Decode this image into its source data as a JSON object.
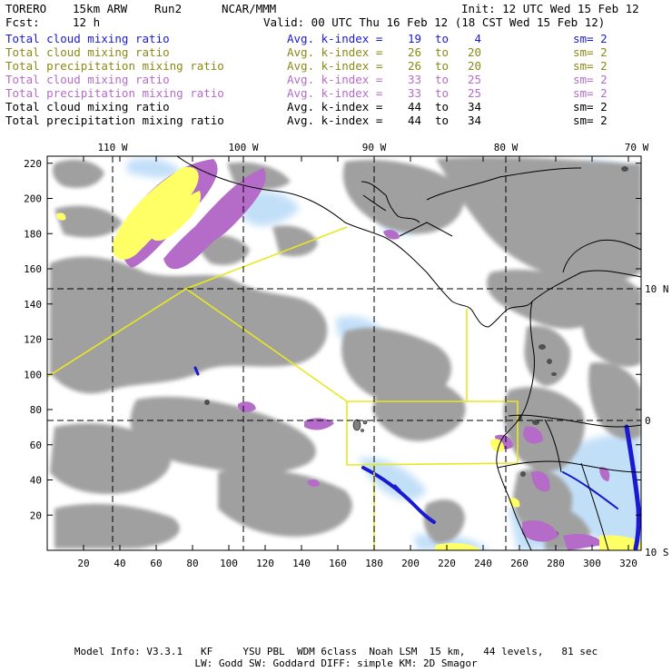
{
  "header": {
    "model": "TORERO",
    "resolution": "15km ARW",
    "run": "Run2",
    "org": "NCAR/MMM",
    "init": "Init: 12 UTC Wed 15 Feb 12",
    "fcst_label": "Fcst:",
    "fcst_value": "12 h",
    "valid": "Valid: 00 UTC Thu 16 Feb 12 (18 CST Wed 15 Feb 12)"
  },
  "legend": [
    {
      "name": "Total cloud mixing ratio",
      "avg": "Avg. k-index =",
      "hi": "19",
      "to": "to",
      "lo": "4",
      "sm": "sm= 2",
      "color": "#1a1ad0"
    },
    {
      "name": "Total cloud mixing ratio",
      "avg": "Avg. k-index =",
      "hi": "26",
      "to": "to",
      "lo": "20",
      "sm": "sm= 2",
      "color": "#8a8a16"
    },
    {
      "name": "Total precipitation mixing ratio",
      "avg": "Avg. k-index =",
      "hi": "26",
      "to": "to",
      "lo": "20",
      "sm": "sm= 2",
      "color": "#8a8a16"
    },
    {
      "name": "Total cloud mixing ratio",
      "avg": "Avg. k-index =",
      "hi": "33",
      "to": "to",
      "lo": "25",
      "sm": "sm= 2",
      "color": "#b46cc8"
    },
    {
      "name": "Total precipitation mixing ratio",
      "avg": "Avg. k-index =",
      "hi": "33",
      "to": "to",
      "lo": "25",
      "sm": "sm= 2",
      "color": "#b46cc8"
    },
    {
      "name": "Total cloud mixing ratio",
      "avg": "Avg. k-index =",
      "hi": "44",
      "to": "to",
      "lo": "34",
      "sm": "sm= 2",
      "color": "#000000"
    },
    {
      "name": "Total precipitation mixing ratio",
      "avg": "Avg. k-index =",
      "hi": "44",
      "to": "to",
      "lo": "34",
      "sm": "sm= 2",
      "color": "#000000"
    }
  ],
  "map": {
    "lon_labels": [
      "110 W",
      "100 W",
      "90 W",
      "80 W",
      "70 W"
    ],
    "lat_labels": [
      "10 N",
      "0",
      "10 S"
    ],
    "x_ticks": [
      "20",
      "40",
      "60",
      "80",
      "100",
      "120",
      "140",
      "160",
      "180",
      "200",
      "220",
      "240",
      "260",
      "280",
      "300",
      "320"
    ],
    "y_ticks": [
      "220",
      "200",
      "180",
      "160",
      "140",
      "120",
      "100",
      "80",
      "60",
      "40",
      "20"
    ],
    "colors": {
      "cloud_gray": "#a0a0a0",
      "light_blue": "#bcdcf8",
      "blue": "#1a1ad0",
      "purple": "#b46cc8",
      "yellow": "#ffff66",
      "yellow_line": "#e8e820",
      "coast": "#000000"
    }
  },
  "footer": {
    "line1": "Model Info: V3.3.1   KF     YSU PBL  WDM 6class  Noah LSM  15 km,   44 levels,   81 sec",
    "line2": "LW: Godd SW: Goddard DIFF: simple KM: 2D Smagor"
  }
}
